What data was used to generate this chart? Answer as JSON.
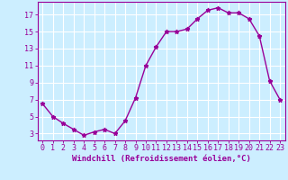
{
  "hours": [
    0,
    1,
    2,
    3,
    4,
    5,
    6,
    7,
    8,
    9,
    10,
    11,
    12,
    13,
    14,
    15,
    16,
    17,
    18,
    19,
    20,
    21,
    22,
    23
  ],
  "values": [
    6.5,
    5.0,
    4.2,
    3.5,
    2.8,
    3.2,
    3.5,
    3.0,
    4.5,
    7.2,
    11.0,
    13.2,
    15.0,
    15.0,
    15.3,
    16.5,
    17.5,
    17.8,
    17.2,
    17.2,
    16.5,
    14.5,
    9.2,
    7.0
  ],
  "line_color": "#990099",
  "marker": "*",
  "marker_size": 3.5,
  "bg_color": "#cceeff",
  "grid_color": "#ffffff",
  "xlabel": "Windchill (Refroidissement éolien,°C)",
  "xlabel_fontsize": 6.5,
  "tick_fontsize": 6.0,
  "yticks": [
    3,
    5,
    7,
    9,
    11,
    13,
    15,
    17
  ],
  "ylim": [
    2.2,
    18.5
  ],
  "xlim": [
    -0.5,
    23.5
  ],
  "linewidth": 1.0,
  "tick_color": "#990099",
  "axis_color": "#990099"
}
